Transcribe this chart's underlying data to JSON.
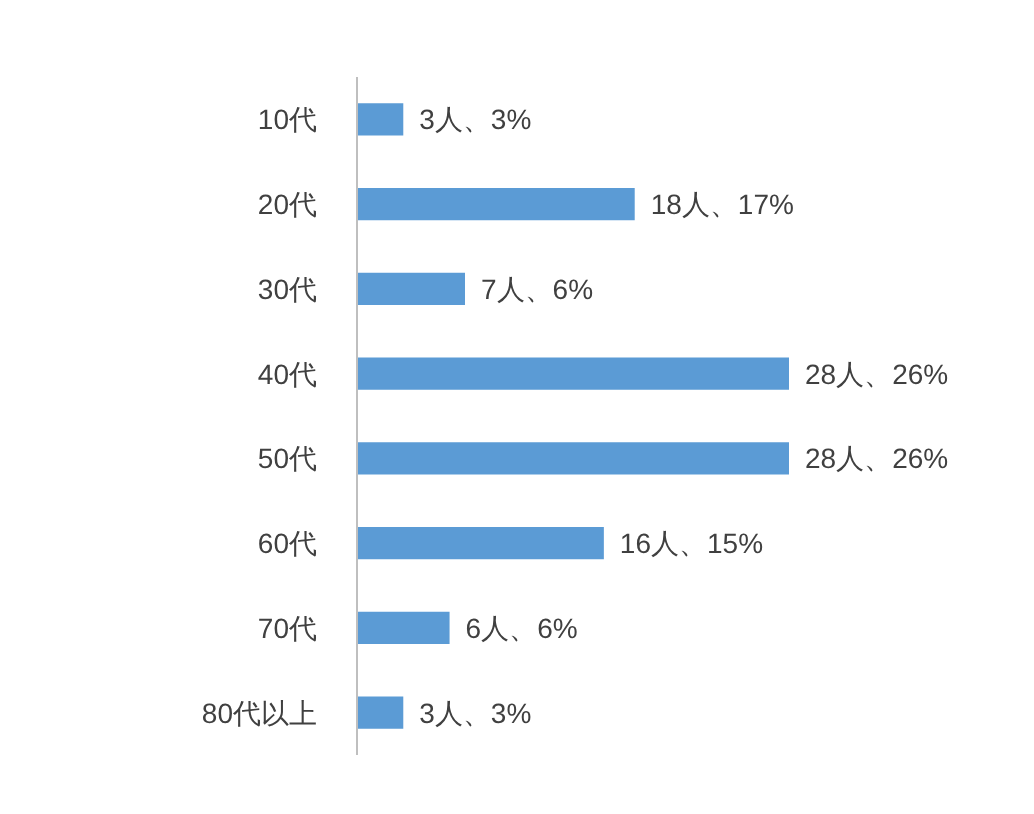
{
  "chart_data": {
    "type": "bar",
    "orientation": "horizontal",
    "categories": [
      "10代",
      "20代",
      "30代",
      "40代",
      "50代",
      "60代",
      "70代",
      "80代以上"
    ],
    "values": [
      3,
      18,
      7,
      28,
      28,
      16,
      6,
      3
    ],
    "value_labels": [
      "3人、3%",
      "18人、17%",
      "7人、6%",
      "28人、26%",
      "28人、26%",
      "16人、15%",
      "6人、6%",
      "3人、3%"
    ],
    "color": "#5b9bd5"
  }
}
